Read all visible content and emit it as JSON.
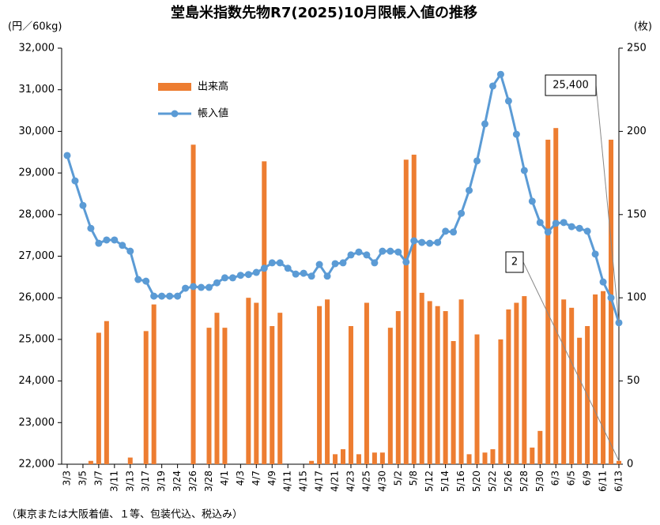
{
  "chart_data": {
    "type": "bar-line",
    "title": "堂島米指数先物R7(2025)10月限帳入値の推移",
    "y_label": "(円／60kg)",
    "y2_label": "(枚)",
    "footnote": "（東京または大阪着値、１等、包装代込、税込み）",
    "categories": [
      "3/3",
      null,
      "3/5",
      null,
      "3/7",
      null,
      "3/11",
      null,
      "3/13",
      null,
      "3/17",
      null,
      "3/19",
      null,
      "3/24",
      null,
      "3/26",
      null,
      "3/28",
      null,
      "4/1",
      null,
      "4/3",
      null,
      "4/7",
      null,
      "4/9",
      null,
      "4/11",
      null,
      "4/15",
      null,
      "4/17",
      null,
      "4/21",
      null,
      "4/23",
      null,
      "4/25",
      null,
      "4/30",
      null,
      "5/2",
      null,
      "5/8",
      null,
      "5/12",
      null,
      "5/14",
      null,
      "5/16",
      null,
      "5/20",
      null,
      "5/22",
      null,
      "5/26",
      null,
      "5/28",
      null,
      "5/30",
      null,
      "6/3",
      null,
      "6/5",
      null,
      "6/9",
      null,
      "6/11",
      null,
      "6/13"
    ],
    "series": [
      {
        "name": "出来高",
        "kind": "bar",
        "axis": "y2",
        "color": "#ed7d31",
        "values": [
          0,
          0,
          0,
          2,
          79,
          86,
          0,
          0,
          4,
          0,
          80,
          96,
          0,
          0,
          0,
          0,
          192,
          0,
          82,
          91,
          82,
          0,
          0,
          100,
          97,
          182,
          83,
          91,
          0,
          0,
          0,
          2,
          95,
          99,
          6,
          9,
          83,
          6,
          97,
          7,
          7,
          82,
          92,
          183,
          186,
          103,
          98,
          95,
          92,
          74,
          99,
          6,
          78,
          7,
          9,
          75,
          93,
          97,
          101,
          10,
          20,
          195,
          202,
          99,
          94,
          76,
          83,
          102,
          104,
          195,
          2
        ]
      },
      {
        "name": "帳入値",
        "kind": "line",
        "axis": "y",
        "color": "#5b9bd5",
        "values": [
          29420,
          28810,
          28220,
          27670,
          27310,
          27390,
          27390,
          27260,
          27120,
          26440,
          26400,
          26040,
          26040,
          26040,
          26040,
          26230,
          26270,
          26250,
          26250,
          26360,
          26480,
          26480,
          26540,
          26560,
          26610,
          26710,
          26840,
          26840,
          26710,
          26570,
          26590,
          26520,
          26800,
          26520,
          26820,
          26840,
          27030,
          27100,
          27030,
          26840,
          27120,
          27120,
          27100,
          26860,
          27370,
          27330,
          27310,
          27330,
          27600,
          27580,
          28030,
          28580,
          29290,
          30180,
          31090,
          31370,
          30730,
          29930,
          29060,
          28320,
          27810,
          27580,
          27790,
          27810,
          27710,
          27670,
          27600,
          27050,
          26380,
          26000,
          25400
        ]
      }
    ],
    "annotations": [
      {
        "text": "25,400"
      },
      {
        "text": "2"
      }
    ],
    "ylim": [
      22000,
      32000
    ],
    "yticks": [
      {
        "value": 22000,
        "label": "22,000"
      },
      {
        "value": 23000,
        "label": "23,000"
      },
      {
        "value": 24000,
        "label": "24,000"
      },
      {
        "value": 25000,
        "label": "25,000"
      },
      {
        "value": 26000,
        "label": "26,000"
      },
      {
        "value": 27000,
        "label": "27,000"
      },
      {
        "value": 28000,
        "label": "28,000"
      },
      {
        "value": 29000,
        "label": "29,000"
      },
      {
        "value": 30000,
        "label": "30,000"
      },
      {
        "value": 31000,
        "label": "31,000"
      },
      {
        "value": 32000,
        "label": "32,000"
      }
    ],
    "y2lim": [
      0,
      250
    ],
    "y2ticks": [
      0,
      50,
      100,
      150,
      200,
      250
    ],
    "grid": false
  }
}
